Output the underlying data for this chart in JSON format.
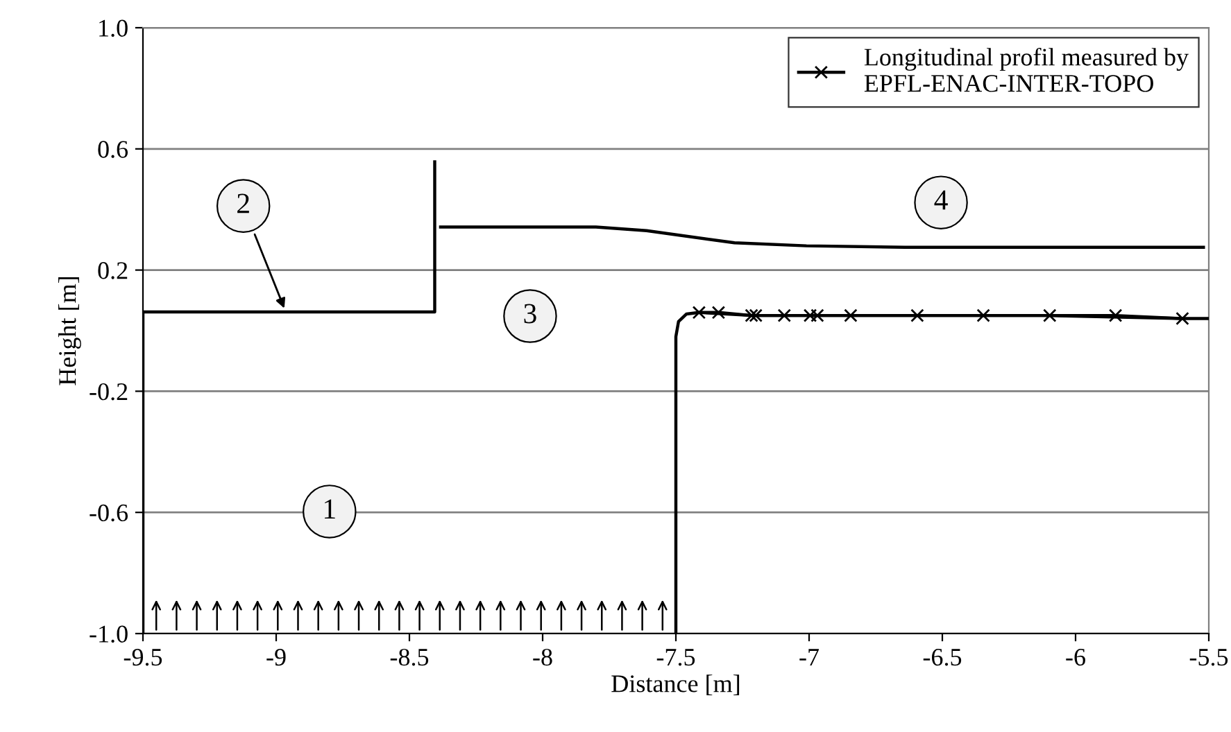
{
  "chart_data": {
    "type": "line",
    "xlabel": "Distance [m]",
    "ylabel": "Height [m]",
    "xlim": [
      -9.5,
      -5.5
    ],
    "ylim": [
      -1.0,
      1.0
    ],
    "xticks": [
      -9.5,
      -9,
      -8.5,
      -8,
      -7.5,
      -7,
      -6.5,
      -6,
      -5.5
    ],
    "yticks": [
      {
        "value": -1.0,
        "label": "-1.0"
      },
      -0.6,
      -0.2,
      0.2,
      0.6,
      {
        "value": 1.0,
        "label": "1.0"
      }
    ],
    "grid": "y",
    "legend": "top right",
    "series": [
      {
        "color": "#000000",
        "x": [
          -9.5,
          -9.5,
          -8.405,
          -8.405
        ],
        "values": [
          -1.0,
          0.062,
          0.062,
          0.557
        ]
      },
      {
        "color": "#000000",
        "x": [
          -8.383,
          -7.8,
          -7.61,
          -7.28,
          -7.01,
          -6.64,
          -5.52
        ],
        "values": [
          0.342,
          0.342,
          0.33,
          0.29,
          0.28,
          0.275,
          0.275
        ]
      },
      {
        "color": "#000000",
        "x": [
          -7.5,
          -7.5,
          -7.49,
          -7.46,
          -7.413,
          -7.216,
          -6.996,
          -6.594,
          -6.097,
          -5.599,
          -5.5
        ],
        "values": [
          -1.0,
          -0.02,
          0.03,
          0.055,
          0.06,
          0.05,
          0.05,
          0.05,
          0.05,
          0.04,
          0.04
        ]
      },
      {
        "name": "Longitudinal profil measured by\nEPFL-ENAC-INTER-TOPO",
        "color": "#000000",
        "marker": "cross",
        "x": [
          -7.413,
          -7.34,
          -7.216,
          -7.2,
          -7.093,
          -6.996,
          -6.969,
          -6.844,
          -6.594,
          -6.346,
          -6.097,
          -5.85,
          -5.599
        ],
        "values": [
          0.06,
          0.06,
          0.05,
          0.05,
          0.05,
          0.05,
          0.05,
          0.05,
          0.05,
          0.05,
          0.05,
          0.05,
          0.04
        ]
      }
    ],
    "annotations": [
      {
        "text": "1",
        "x": -8.8,
        "y": -0.597
      },
      {
        "text": "2",
        "x": -8.964,
        "y": 0.062
      },
      {
        "text": "3",
        "x": -8.047,
        "y": 0.048
      },
      {
        "text": "4",
        "x": -6.505,
        "y": 0.423
      }
    ]
  }
}
